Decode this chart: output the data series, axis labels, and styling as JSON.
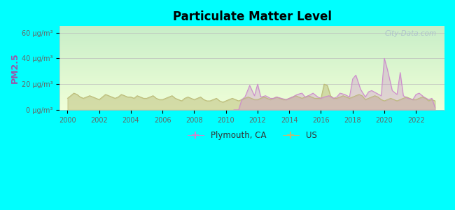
{
  "title": "Particulate Matter Level",
  "ylabel": "PM2.5",
  "background_outer": "#00FFFF",
  "ylim": [
    0,
    65
  ],
  "yticks": [
    0,
    20,
    40,
    60
  ],
  "ytick_labels": [
    "0 μg/m³",
    "20 μg/m³",
    "40 μg/m³",
    "60 μg/m³"
  ],
  "xlim": [
    1999.5,
    2023.8
  ],
  "xticks": [
    2000,
    2002,
    2004,
    2006,
    2008,
    2010,
    2012,
    2014,
    2016,
    2018,
    2020,
    2022
  ],
  "color_plymouth": "#cc88cc",
  "color_us": "#bbbb77",
  "watermark": "City-Data.com",
  "legend_labels": [
    "Plymouth, CA",
    "US"
  ],
  "grad_top": "#c8eec8",
  "grad_bottom": "#f0ffd8",
  "us_data_x": [
    2000,
    2000.2,
    2000.4,
    2000.6,
    2000.8,
    2001,
    2001.2,
    2001.4,
    2001.6,
    2001.8,
    2002,
    2002.2,
    2002.4,
    2002.6,
    2002.8,
    2003,
    2003.2,
    2003.4,
    2003.6,
    2003.8,
    2004,
    2004.2,
    2004.4,
    2004.6,
    2004.8,
    2005,
    2005.2,
    2005.4,
    2005.6,
    2005.8,
    2006,
    2006.2,
    2006.4,
    2006.6,
    2006.8,
    2007,
    2007.2,
    2007.4,
    2007.6,
    2007.8,
    2008,
    2008.2,
    2008.4,
    2008.6,
    2008.8,
    2009,
    2009.2,
    2009.4,
    2009.6,
    2009.8,
    2010,
    2010.2,
    2010.4,
    2010.6,
    2010.8,
    2011,
    2011.2,
    2011.4,
    2011.6,
    2011.8,
    2012,
    2012.2,
    2012.4,
    2012.6,
    2012.8,
    2013,
    2013.2,
    2013.4,
    2013.6,
    2013.8,
    2014,
    2014.2,
    2014.4,
    2014.6,
    2014.8,
    2015,
    2015.2,
    2015.4,
    2015.6,
    2015.8,
    2016,
    2016.2,
    2016.4,
    2016.6,
    2016.8,
    2017,
    2017.2,
    2017.4,
    2017.6,
    2017.8,
    2018,
    2018.2,
    2018.4,
    2018.6,
    2018.8,
    2019,
    2019.2,
    2019.4,
    2019.6,
    2019.8,
    2020,
    2020.2,
    2020.4,
    2020.6,
    2020.8,
    2021,
    2021.2,
    2021.4,
    2021.6,
    2021.8,
    2022,
    2022.2,
    2022.4,
    2022.6,
    2022.8,
    2023,
    2023.2
  ],
  "us_data_y": [
    9,
    11,
    13,
    12,
    10,
    9,
    10,
    11,
    10,
    9,
    8,
    10,
    12,
    11,
    10,
    9,
    10,
    12,
    11,
    10,
    10,
    9,
    11,
    10,
    9,
    9,
    10,
    11,
    9,
    8,
    8,
    9,
    10,
    11,
    9,
    8,
    7,
    9,
    10,
    9,
    8,
    9,
    10,
    8,
    7,
    7,
    8,
    9,
    7,
    6,
    7,
    8,
    9,
    8,
    7,
    8,
    9,
    10,
    9,
    8,
    8,
    9,
    10,
    9,
    8,
    9,
    10,
    9,
    8,
    8,
    9,
    10,
    11,
    10,
    9,
    10,
    11,
    10,
    9,
    9,
    9,
    20,
    19,
    11,
    9,
    9,
    10,
    11,
    10,
    9,
    10,
    11,
    12,
    11,
    8,
    9,
    10,
    11,
    10,
    8,
    7,
    8,
    9,
    8,
    7,
    8,
    9,
    10,
    9,
    8,
    8,
    9,
    10,
    9,
    7,
    8,
    7
  ],
  "plymouth_data_x": [
    2010.5,
    2010.8,
    2011,
    2011.2,
    2011.5,
    2011.8,
    2012,
    2012.2,
    2012.5,
    2012.8,
    2013,
    2013.2,
    2013.5,
    2013.8,
    2014,
    2014.2,
    2014.5,
    2014.8,
    2015,
    2015.2,
    2015.5,
    2015.8,
    2016,
    2016.2,
    2016.5,
    2016.8,
    2017,
    2017.2,
    2017.5,
    2017.8,
    2018,
    2018.2,
    2018.5,
    2018.8,
    2019,
    2019.2,
    2019.5,
    2019.8,
    2020,
    2020.2,
    2020.5,
    2020.8,
    2021,
    2021.2,
    2021.5,
    2021.8,
    2022,
    2022.2,
    2022.5,
    2022.8,
    2023,
    2023.2
  ],
  "plymouth_data_y": [
    0,
    0,
    8,
    10,
    19,
    11,
    20,
    10,
    11,
    9,
    9,
    10,
    9,
    8,
    9,
    10,
    12,
    13,
    10,
    11,
    13,
    10,
    9,
    10,
    11,
    9,
    10,
    13,
    12,
    10,
    24,
    27,
    16,
    10,
    14,
    15,
    13,
    11,
    40,
    31,
    15,
    12,
    29,
    11,
    9,
    8,
    12,
    13,
    10,
    8,
    9,
    2
  ]
}
